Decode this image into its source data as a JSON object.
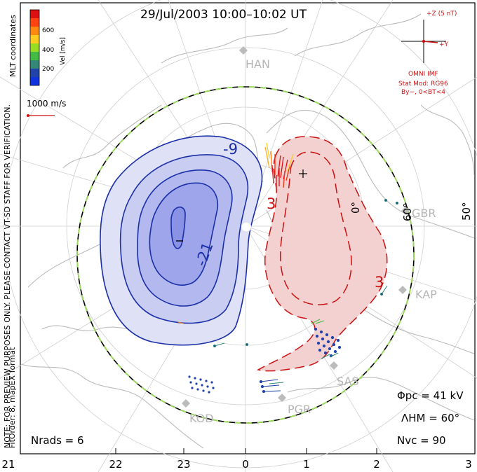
{
  "title": "29/Jul/2003 10:00–10:02 UT",
  "side_note": "NOTE: FOR PREVIEW PURPOSES ONLY. PLEASE CONTACT VT-SD STAFF FOR VERIFICATION.",
  "coord_label": "MLT coordinates",
  "fitorder": "FitOrder: 8, mapEX format",
  "colorbar": {
    "label": "Vel [m/s]",
    "ticks": [
      "600",
      "400",
      "200"
    ],
    "colors": [
      "#dd1111",
      "#ff4411",
      "#ff8811",
      "#ffcc22",
      "#99dd22",
      "#44bb44",
      "#338877",
      "#2244aa",
      "#1133dd"
    ]
  },
  "reference_vector": {
    "label": "1000 m/s"
  },
  "imf": {
    "z_label": "+Z (5 nT)",
    "y_label": "+Y",
    "source": "OMNI IMF",
    "model": "Stat Mod: RG96",
    "condition": "By−, 0<BT<4"
  },
  "stations": [
    "HAN",
    "GBR",
    "KAP",
    "SAS",
    "PGR",
    "KOD"
  ],
  "contours": {
    "neg1": "-9",
    "neg2": "-21",
    "pos1": "3",
    "pos2": "3"
  },
  "lat_labels": [
    "0°",
    "60°",
    "50°"
  ],
  "mlt_ticks": [
    "21",
    "22",
    "23",
    "0",
    "1",
    "2",
    "3"
  ],
  "stats": {
    "phi_pc": "Φpc = 41 kV",
    "lambda_hm": "ΛHM = 60°",
    "n_vc": "Nvc = 90",
    "n_rads": "Nrads = 6"
  },
  "colors": {
    "negative_cell": "#1a2fa8",
    "positive_cell": "#cc1111",
    "boundary_green": "#99dd55",
    "coast": "#b8b8b8"
  }
}
